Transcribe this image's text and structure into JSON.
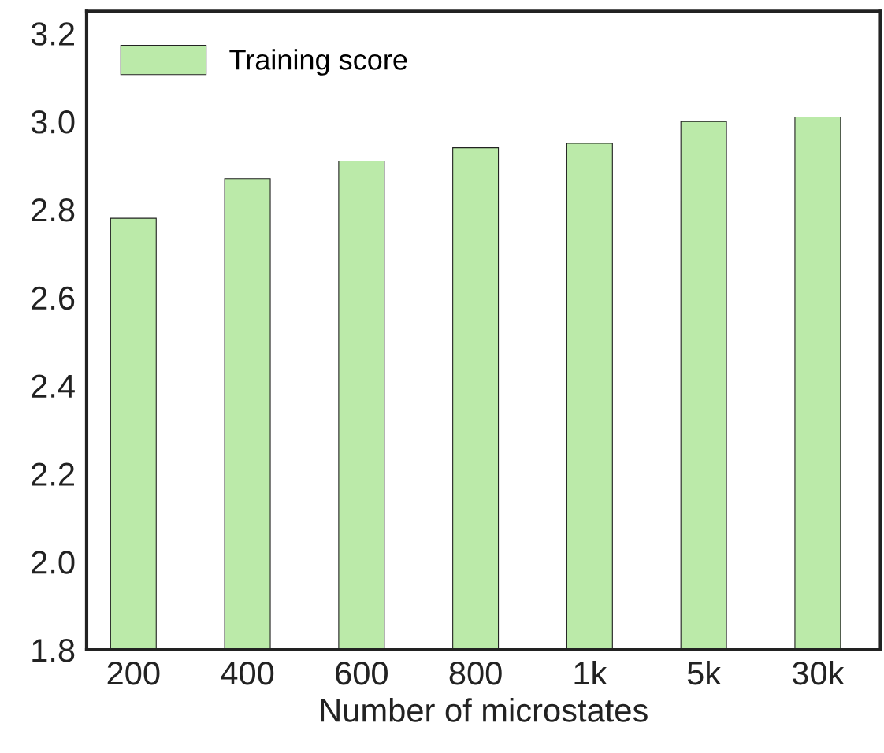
{
  "chart_data": {
    "type": "bar",
    "xlabel": "Number of microstates",
    "categories": [
      "200",
      "400",
      "600",
      "800",
      "1k",
      "5k",
      "30k"
    ],
    "series": [
      {
        "name": "Training score",
        "color": "#bbeaa9",
        "values": [
          2.78,
          2.87,
          2.91,
          2.94,
          2.95,
          3.0,
          3.01
        ]
      }
    ],
    "ylim": [
      1.8,
      3.25
    ],
    "yticks": [
      1.8,
      {
        "value": 2,
        "label": "2.0"
      },
      2.2,
      2.4,
      2.6,
      2.8,
      {
        "value": 3,
        "label": "3.0"
      },
      3.2
    ],
    "grid": false,
    "legend": "top left"
  }
}
